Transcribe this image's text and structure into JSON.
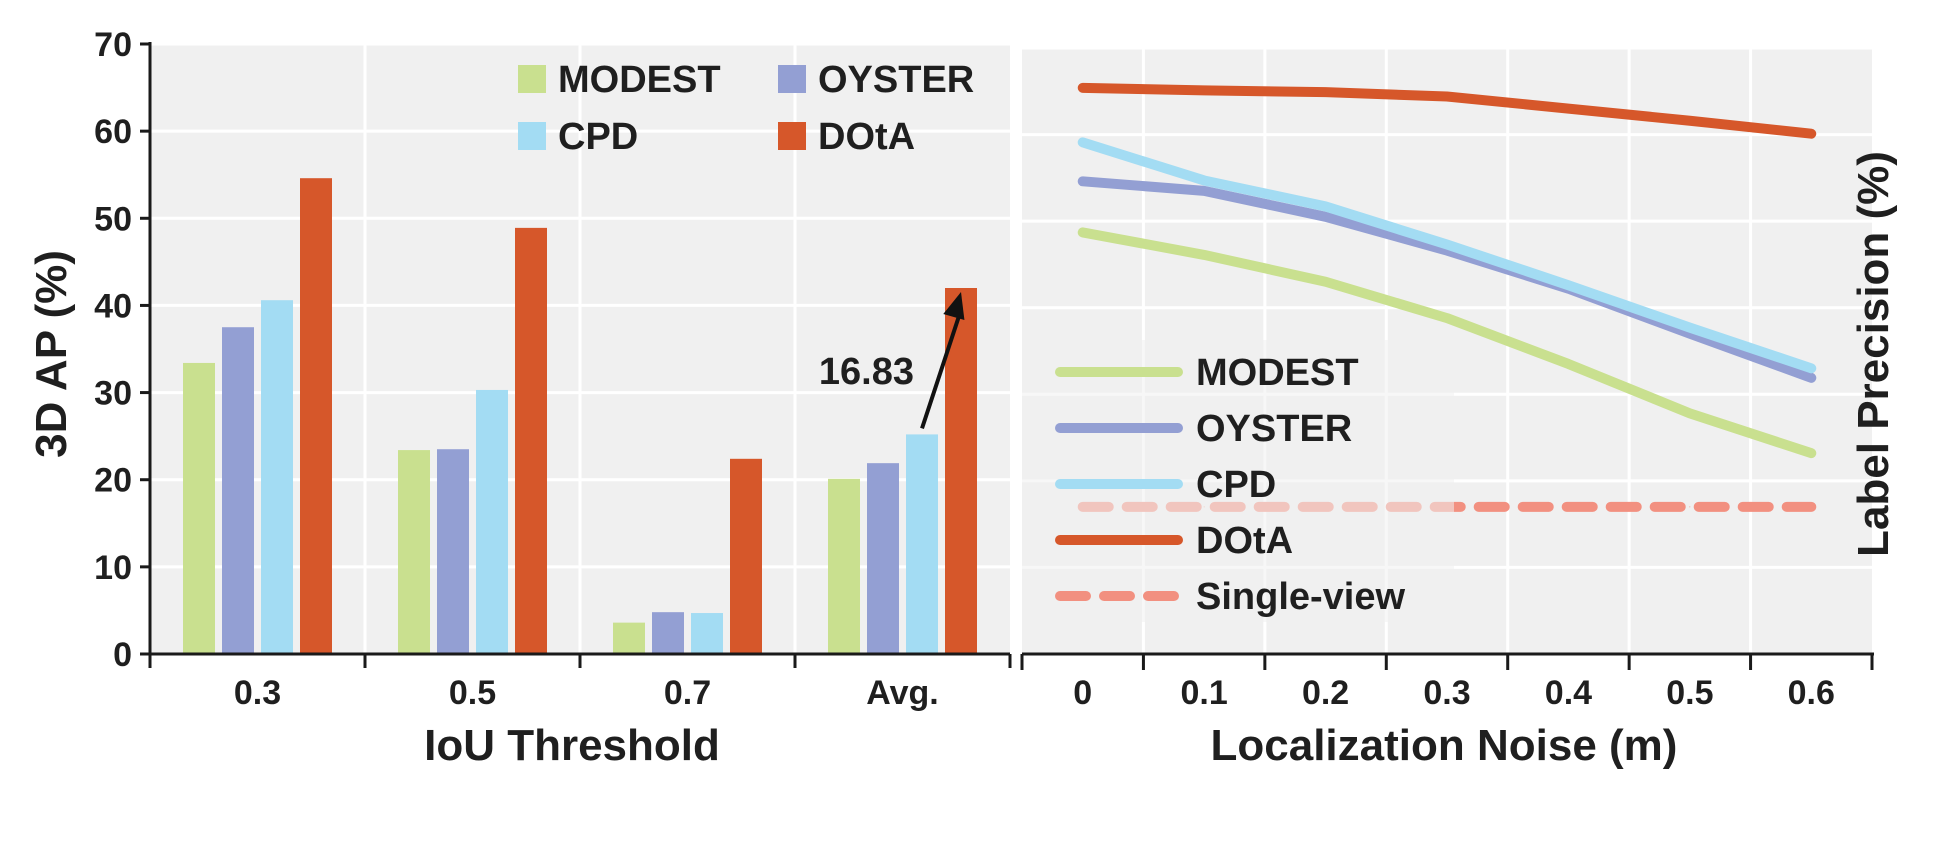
{
  "colors": {
    "MODEST": "#c9e08f",
    "OYSTER": "#939fd3",
    "CPD": "#a3dcf3",
    "DOtA": "#d6572a",
    "Single-view": "#f29080",
    "panel_bg": "#f0f0f0",
    "grid": "#ffffff",
    "axis": "#1a1a1a"
  },
  "chart_data": [
    {
      "type": "bar",
      "xlabel": "IoU Threshold",
      "ylabel": "3D AP (%)",
      "ylim": [
        0,
        70
      ],
      "yticks": [
        "0",
        "10",
        "20",
        "30",
        "40",
        "50",
        "60",
        "70"
      ],
      "categories": [
        "0.3",
        "0.5",
        "0.7",
        "Avg."
      ],
      "series": [
        {
          "name": "MODEST",
          "values": [
            33.4,
            23.4,
            3.6,
            20.1
          ]
        },
        {
          "name": "OYSTER",
          "values": [
            37.5,
            23.5,
            4.8,
            21.9
          ]
        },
        {
          "name": "CPD",
          "values": [
            40.6,
            30.3,
            4.7,
            25.2
          ]
        },
        {
          "name": "DOtA",
          "values": [
            54.6,
            48.9,
            22.4,
            42.0
          ]
        }
      ],
      "legend": [
        "MODEST",
        "OYSTER",
        "CPD",
        "DOtA"
      ],
      "legend_position": "top-right",
      "annotation": {
        "text": "16.83",
        "from_series": "CPD",
        "to_series": "DOtA",
        "category": "Avg."
      },
      "grid": true
    },
    {
      "type": "line",
      "xlabel": "Localization Noise (m)",
      "ylabel": "Label Precision (%)",
      "ylim": [
        0,
        70
      ],
      "x": [
        "0",
        "0.1",
        "0.2",
        "0.3",
        "0.4",
        "0.5",
        "0.6"
      ],
      "series": [
        {
          "name": "MODEST",
          "values": [
            48.7,
            46.1,
            43.0,
            38.8,
            33.5,
            27.8,
            23.2
          ]
        },
        {
          "name": "OYSTER",
          "values": [
            54.6,
            53.5,
            50.5,
            46.6,
            42.2,
            37.0,
            31.9
          ]
        },
        {
          "name": "CPD",
          "values": [
            59.1,
            54.7,
            51.7,
            47.3,
            42.6,
            37.7,
            33.0
          ]
        },
        {
          "name": "DOtA",
          "values": [
            65.4,
            65.1,
            64.9,
            64.4,
            63.0,
            61.6,
            60.1
          ]
        },
        {
          "name": "Single-view",
          "values": [
            17.0,
            17.0,
            17.0,
            17.0,
            17.0,
            17.0,
            17.0
          ],
          "dashed": true
        }
      ],
      "legend": [
        "MODEST",
        "OYSTER",
        "CPD",
        "DOtA",
        "Single-view"
      ],
      "legend_position": "lower-left",
      "grid": true
    }
  ]
}
